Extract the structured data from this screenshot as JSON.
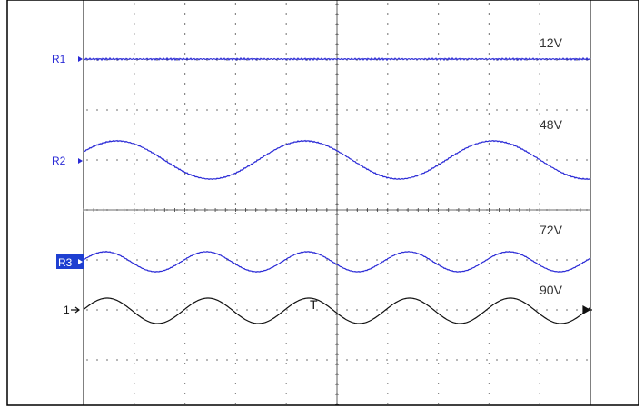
{
  "channels": [
    {
      "id": "R1",
      "marker": "R1",
      "voltage": "12V",
      "color": "#2a2ad6",
      "selected": false
    },
    {
      "id": "R2",
      "marker": "R2",
      "voltage": "48V",
      "color": "#2a2ad6",
      "selected": false
    },
    {
      "id": "R3",
      "marker": "R3",
      "voltage": "72V",
      "color": "#2a2ad6",
      "selected": true
    },
    {
      "id": "1",
      "marker": "1",
      "voltage": "90V",
      "color": "#111111",
      "selected": false
    }
  ],
  "trigger": {
    "label": "T"
  },
  "colors": {
    "grid": "#3a3a3a",
    "frame": "#000000",
    "background": "#ffffff",
    "selected_bg": "#1e3fd1",
    "selected_fg": "#ffffff"
  }
}
